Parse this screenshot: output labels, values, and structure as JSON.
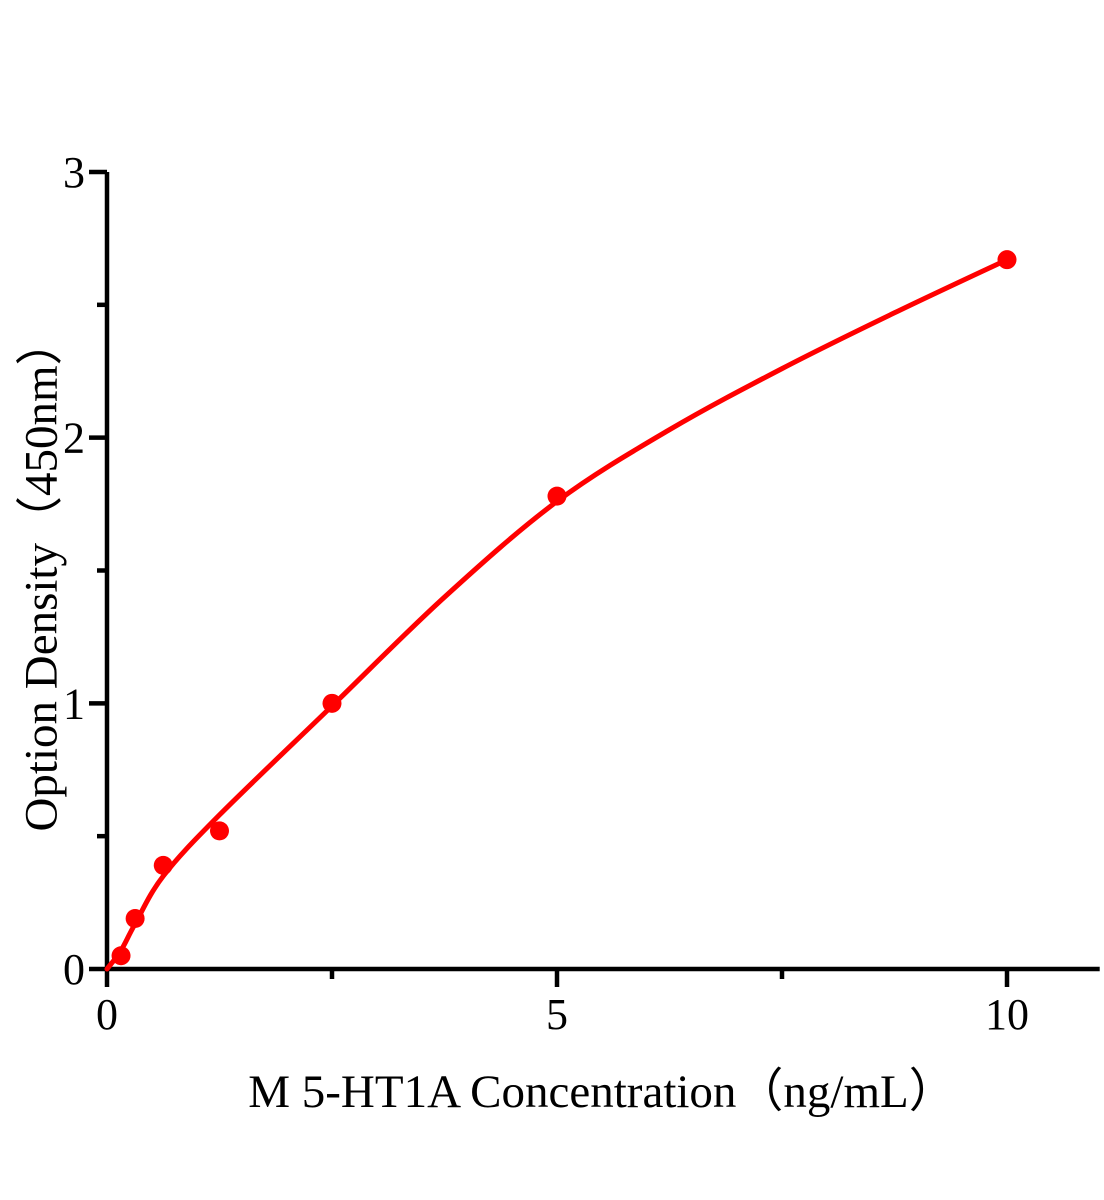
{
  "figure": {
    "background": "#ffffff"
  },
  "chart_data": {
    "type": "scatter",
    "title": "",
    "xlabel": "M 5-HT1A Concentration（ng/mL）",
    "ylabel": "Option Density（450nm）",
    "xlim": [
      0,
      11.03
    ],
    "ylim": [
      0,
      3
    ],
    "xticks_major": [
      0,
      5,
      10
    ],
    "xticks_minor": [
      2.5,
      7.5
    ],
    "yticks_major": [
      0,
      1,
      2,
      3
    ],
    "yticks_minor": [
      0.5,
      1.5,
      2.5
    ],
    "grid": false,
    "legend": false,
    "axis_color": "#000000",
    "series": [
      {
        "x": [
          0.156,
          0.3125,
          0.625,
          1.25,
          2.5,
          5,
          10
        ],
        "y": [
          0.05,
          0.19,
          0.39,
          0.52,
          1.0,
          1.78,
          2.67
        ],
        "marker": "circle",
        "marker_color": "#ff0000",
        "line_color": "#ff0000",
        "fit_curve": [
          [
            0,
            0
          ],
          [
            0.156,
            0.07
          ],
          [
            0.3125,
            0.17
          ],
          [
            0.625,
            0.35
          ],
          [
            1.25,
            0.58
          ],
          [
            2.5,
            0.99
          ],
          [
            3.75,
            1.4
          ],
          [
            5,
            1.76
          ],
          [
            6.25,
            2.03
          ],
          [
            7.5,
            2.26
          ],
          [
            8.75,
            2.47
          ],
          [
            10,
            2.67
          ]
        ]
      }
    ]
  }
}
